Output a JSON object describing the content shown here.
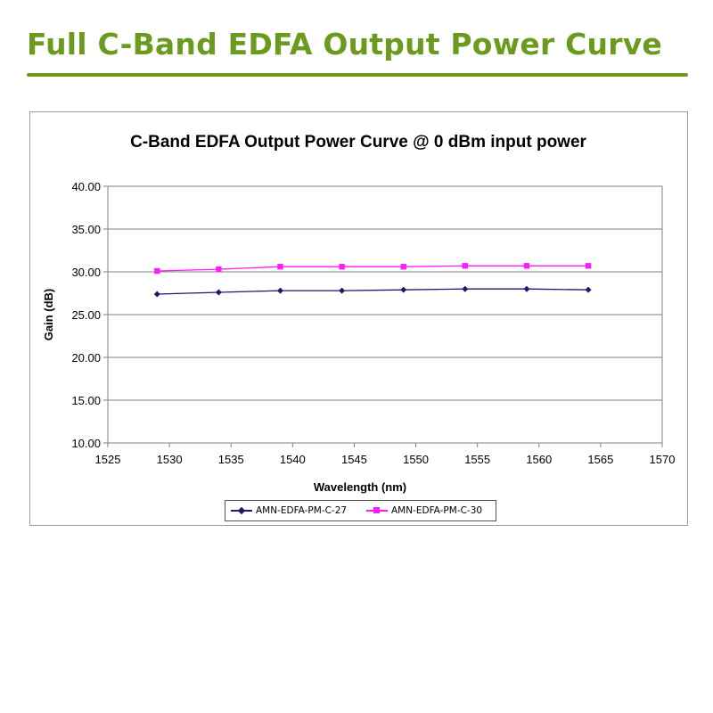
{
  "page": {
    "title": "Full C-Band EDFA Output Power Curve",
    "accent_color": "#6a9a1e"
  },
  "chart_data": {
    "type": "line",
    "title": "C-Band EDFA Output Power Curve @ 0 dBm input power",
    "xlabel": "Wavelength (nm)",
    "ylabel": "Gain (dB)",
    "xlim": [
      1525,
      1570
    ],
    "ylim": [
      10,
      40
    ],
    "x_ticks": [
      "1525",
      "1530",
      "1535",
      "1540",
      "1545",
      "1550",
      "1555",
      "1560",
      "1565",
      "1570"
    ],
    "y_ticks": [
      "10.00",
      "15.00",
      "20.00",
      "25.00",
      "30.00",
      "35.00",
      "40.00"
    ],
    "grid": "horizontal",
    "legend_position": "bottom",
    "x": [
      1529,
      1534,
      1539,
      1544,
      1549,
      1554,
      1559,
      1564
    ],
    "series": [
      {
        "name": "AMN-EDFA-PM-C-27",
        "color": "#1a1a6e",
        "marker": "diamond",
        "values": [
          27.4,
          27.6,
          27.8,
          27.8,
          27.9,
          28.0,
          28.0,
          27.9
        ]
      },
      {
        "name": "AMN-EDFA-PM-C-30",
        "color": "#ff1aff",
        "marker": "square",
        "values": [
          30.1,
          30.3,
          30.6,
          30.6,
          30.6,
          30.7,
          30.7,
          30.7
        ]
      }
    ]
  }
}
